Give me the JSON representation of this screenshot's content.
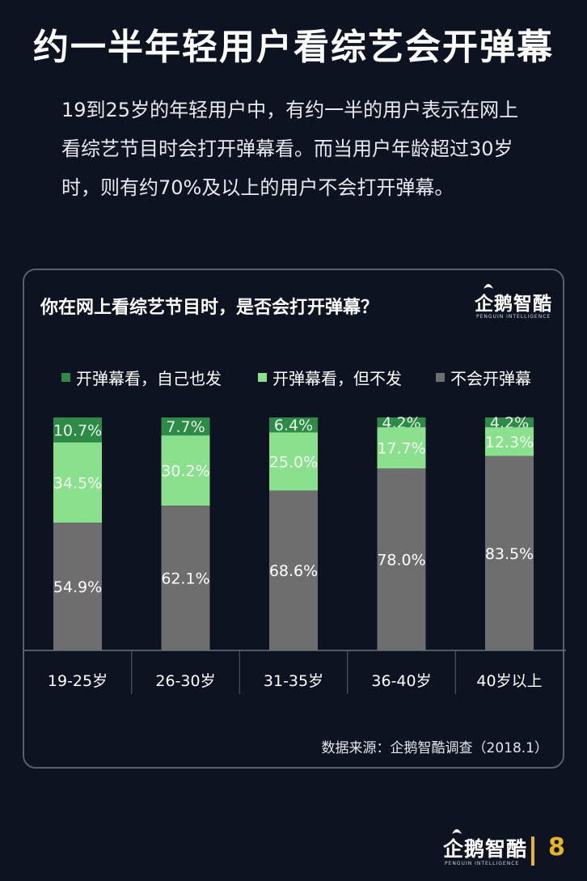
{
  "title": "约一半年轻用户看综艺会开弹幕",
  "intro": "19到25岁的年轻用户中，有约一半的用户表示在网上看综艺节目时会打开弹幕看。而当用户年龄超过30岁时，则有约70%及以上的用户不会打开弹幕。",
  "brand": {
    "name": "企鹅智酷",
    "sub": "PENGUIN INTELLIGENCE"
  },
  "page_number": "8",
  "colors": {
    "background": "#0e1322",
    "dark_green": "#2e8a47",
    "light_green": "#8be08d",
    "gray": "#6e6e6e",
    "accent": "#e8b51f"
  },
  "chart_data": {
    "type": "bar",
    "stacked": true,
    "title": "你在网上看综艺节目时，是否会打开弹幕？",
    "categories": [
      "19-25岁",
      "26-30岁",
      "31-35岁",
      "36-40岁",
      "40岁以上"
    ],
    "series": [
      {
        "name": "开弹幕看，自己也发",
        "color": "#2e8a47",
        "values": [
          10.7,
          7.7,
          6.4,
          4.2,
          4.2
        ],
        "labels": [
          "10.7%",
          "7.7%",
          "6.4%",
          "4.2%",
          "4.2%"
        ]
      },
      {
        "name": "开弹幕看，但不发",
        "color": "#8be08d",
        "values": [
          34.5,
          30.2,
          25.0,
          17.7,
          12.3
        ],
        "labels": [
          "34.5%",
          "30.2%",
          "25.0%",
          "17.7%",
          "12.3%"
        ]
      },
      {
        "name": "不会开弹幕",
        "color": "#6e6e6e",
        "values": [
          54.9,
          62.1,
          68.6,
          78.0,
          83.5
        ],
        "labels": [
          "54.9%",
          "62.1%",
          "68.6%",
          "78.0%",
          "83.5%"
        ]
      }
    ],
    "ylim": [
      0,
      100
    ],
    "legend_position": "top",
    "grid": false,
    "source": "数据来源：企鹅智酷调查（2018.1）"
  }
}
